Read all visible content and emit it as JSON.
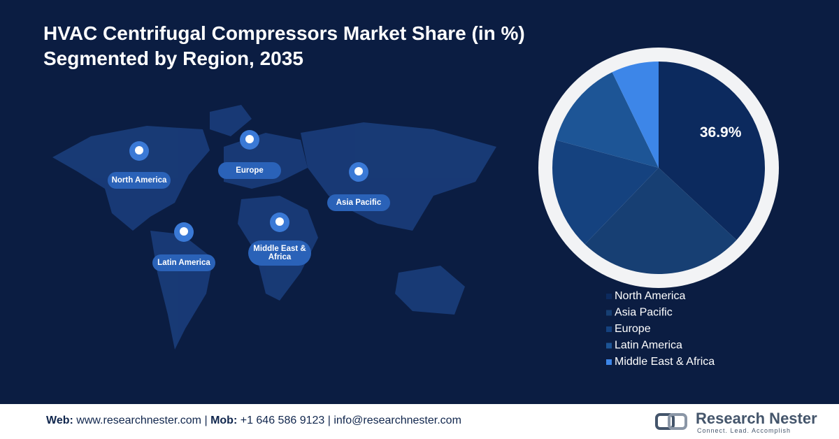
{
  "chart_data": {
    "type": "pie",
    "title": "HVAC Centrifugal Compressors Market Share (in %)",
    "subtitle": "Segmented by Region, 2035",
    "categories": [
      "North America",
      "Asia Pacific",
      "Europe",
      "Latin America",
      "Middle East & Africa"
    ],
    "values": [
      36.9,
      25.3,
      17,
      13.6,
      7.2
    ],
    "value_labels": [
      "36.9%",
      null,
      null,
      null,
      null
    ],
    "colors": [
      "#0c2a5e",
      "#173f73",
      "#15427f",
      "#1d5596",
      "#3d86e8"
    ],
    "legend": "bottom-right"
  },
  "footer": {
    "web_label": "Web:",
    "web": "www.researchnester.com",
    "sep1": "|",
    "mob_label": "Mob:",
    "mob": "+1 646 586 9123",
    "sep2": "|",
    "email": "info@researchnester.com",
    "brand": "Research Nester",
    "tagline": "Connect. Lead. Accomplish"
  }
}
